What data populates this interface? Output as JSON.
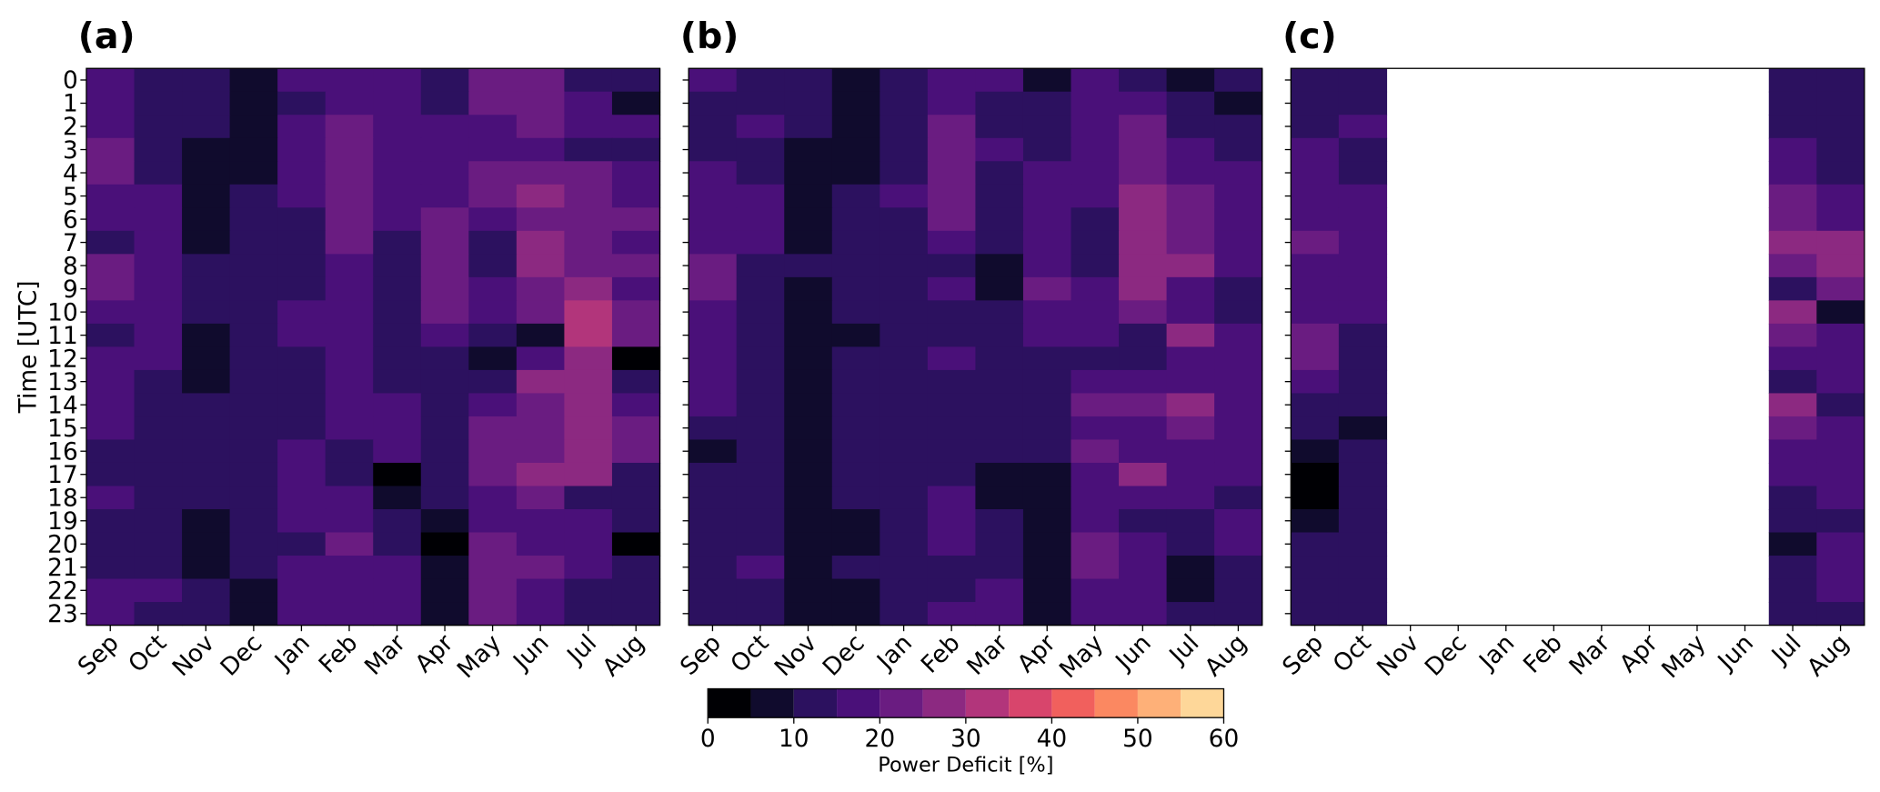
{
  "chart_data": [
    {
      "type": "heatmap",
      "title": "(a)",
      "ylabel": "Time [UTC]",
      "categories": [
        "Sep",
        "Oct",
        "Nov",
        "Dec",
        "Jan",
        "Feb",
        "Mar",
        "Apr",
        "May",
        "Jun",
        "Jul",
        "Aug"
      ],
      "rows": [
        0,
        1,
        2,
        3,
        4,
        5,
        6,
        7,
        8,
        9,
        10,
        11,
        12,
        13,
        14,
        15,
        16,
        17,
        18,
        19,
        20,
        21,
        22,
        23
      ],
      "values": [
        [
          17,
          12,
          12,
          7,
          17,
          17,
          17,
          12,
          22,
          22,
          12,
          12
        ],
        [
          17,
          12,
          12,
          7,
          12,
          17,
          17,
          12,
          22,
          22,
          17,
          7
        ],
        [
          17,
          12,
          12,
          7,
          17,
          22,
          17,
          17,
          17,
          22,
          17,
          17
        ],
        [
          22,
          12,
          7,
          7,
          17,
          22,
          17,
          17,
          17,
          17,
          12,
          12
        ],
        [
          22,
          12,
          7,
          7,
          17,
          22,
          17,
          17,
          22,
          22,
          22,
          17
        ],
        [
          17,
          17,
          7,
          12,
          17,
          22,
          17,
          17,
          22,
          27,
          22,
          17
        ],
        [
          17,
          17,
          7,
          12,
          12,
          22,
          17,
          22,
          17,
          22,
          22,
          22
        ],
        [
          12,
          17,
          7,
          12,
          12,
          22,
          12,
          22,
          12,
          27,
          22,
          17
        ],
        [
          22,
          17,
          12,
          12,
          12,
          17,
          12,
          22,
          12,
          27,
          22,
          22
        ],
        [
          22,
          17,
          12,
          12,
          12,
          17,
          12,
          22,
          17,
          22,
          27,
          17
        ],
        [
          17,
          17,
          12,
          12,
          17,
          17,
          12,
          22,
          17,
          22,
          32,
          22
        ],
        [
          12,
          17,
          7,
          12,
          17,
          17,
          12,
          17,
          12,
          7,
          32,
          22
        ],
        [
          17,
          17,
          7,
          12,
          12,
          17,
          12,
          12,
          7,
          17,
          27,
          2
        ],
        [
          17,
          12,
          7,
          12,
          12,
          17,
          12,
          12,
          12,
          27,
          27,
          12
        ],
        [
          17,
          12,
          12,
          12,
          12,
          17,
          17,
          12,
          17,
          22,
          27,
          17
        ],
        [
          17,
          12,
          12,
          12,
          12,
          17,
          17,
          12,
          22,
          22,
          27,
          22
        ],
        [
          12,
          12,
          12,
          12,
          17,
          12,
          17,
          12,
          22,
          22,
          27,
          22
        ],
        [
          12,
          12,
          12,
          12,
          17,
          12,
          2,
          12,
          22,
          27,
          27,
          12
        ],
        [
          17,
          12,
          12,
          12,
          17,
          17,
          7,
          12,
          17,
          22,
          12,
          12
        ],
        [
          12,
          12,
          7,
          12,
          17,
          17,
          12,
          7,
          17,
          17,
          17,
          12
        ],
        [
          12,
          12,
          7,
          12,
          12,
          22,
          12,
          2,
          22,
          17,
          17,
          2
        ],
        [
          12,
          12,
          7,
          12,
          17,
          17,
          17,
          7,
          22,
          22,
          17,
          12
        ],
        [
          17,
          17,
          12,
          7,
          17,
          17,
          17,
          7,
          22,
          17,
          12,
          12
        ],
        [
          17,
          12,
          12,
          7,
          17,
          17,
          17,
          7,
          22,
          17,
          12,
          12
        ]
      ]
    },
    {
      "type": "heatmap",
      "title": "(b)",
      "categories": [
        "Sep",
        "Oct",
        "Nov",
        "Dec",
        "Jan",
        "Feb",
        "Mar",
        "Apr",
        "May",
        "Jun",
        "Jul",
        "Aug"
      ],
      "values": [
        [
          17,
          12,
          12,
          7,
          12,
          17,
          17,
          7,
          17,
          12,
          7,
          12
        ],
        [
          12,
          12,
          12,
          7,
          12,
          17,
          12,
          12,
          17,
          17,
          12,
          7
        ],
        [
          12,
          17,
          12,
          7,
          12,
          22,
          12,
          12,
          17,
          22,
          12,
          12
        ],
        [
          12,
          12,
          7,
          7,
          12,
          22,
          17,
          12,
          17,
          22,
          17,
          12
        ],
        [
          17,
          12,
          7,
          7,
          12,
          22,
          12,
          17,
          17,
          22,
          17,
          17
        ],
        [
          17,
          17,
          7,
          12,
          17,
          22,
          12,
          17,
          17,
          27,
          22,
          17
        ],
        [
          17,
          17,
          7,
          12,
          12,
          22,
          12,
          17,
          12,
          27,
          22,
          17
        ],
        [
          17,
          17,
          7,
          12,
          12,
          17,
          12,
          17,
          12,
          27,
          22,
          17
        ],
        [
          22,
          12,
          12,
          12,
          12,
          12,
          7,
          17,
          12,
          27,
          27,
          17
        ],
        [
          22,
          12,
          7,
          12,
          12,
          17,
          7,
          22,
          17,
          27,
          17,
          12
        ],
        [
          17,
          12,
          7,
          12,
          12,
          12,
          12,
          17,
          17,
          22,
          17,
          12
        ],
        [
          17,
          12,
          7,
          7,
          12,
          12,
          12,
          17,
          17,
          12,
          27,
          17
        ],
        [
          17,
          12,
          7,
          12,
          12,
          17,
          12,
          12,
          12,
          12,
          17,
          17
        ],
        [
          17,
          12,
          7,
          12,
          12,
          12,
          12,
          12,
          17,
          17,
          17,
          17
        ],
        [
          17,
          12,
          7,
          12,
          12,
          12,
          12,
          12,
          22,
          22,
          27,
          17
        ],
        [
          12,
          12,
          7,
          12,
          12,
          12,
          12,
          12,
          17,
          17,
          22,
          17
        ],
        [
          7,
          12,
          7,
          12,
          12,
          12,
          12,
          12,
          22,
          17,
          17,
          17
        ],
        [
          12,
          12,
          7,
          12,
          12,
          12,
          7,
          7,
          17,
          27,
          17,
          17
        ],
        [
          12,
          12,
          7,
          12,
          12,
          17,
          7,
          7,
          17,
          17,
          17,
          12
        ],
        [
          12,
          12,
          7,
          7,
          12,
          17,
          12,
          7,
          17,
          12,
          12,
          17
        ],
        [
          12,
          12,
          7,
          7,
          12,
          17,
          12,
          7,
          22,
          17,
          12,
          17
        ],
        [
          12,
          17,
          7,
          12,
          12,
          12,
          12,
          7,
          22,
          17,
          7,
          12
        ],
        [
          12,
          12,
          7,
          7,
          12,
          12,
          17,
          7,
          17,
          17,
          7,
          12
        ],
        [
          12,
          12,
          7,
          7,
          12,
          17,
          17,
          7,
          17,
          17,
          12,
          12
        ]
      ]
    },
    {
      "type": "heatmap",
      "title": "(c)",
      "categories": [
        "Sep",
        "Oct",
        "Nov",
        "Dec",
        "Jan",
        "Feb",
        "Mar",
        "Apr",
        "May",
        "Jun",
        "Jul",
        "Aug"
      ],
      "values": [
        [
          12,
          12,
          null,
          null,
          null,
          null,
          null,
          null,
          null,
          null,
          12,
          12
        ],
        [
          12,
          12,
          null,
          null,
          null,
          null,
          null,
          null,
          null,
          null,
          12,
          12
        ],
        [
          12,
          17,
          null,
          null,
          null,
          null,
          null,
          null,
          null,
          null,
          12,
          12
        ],
        [
          17,
          12,
          null,
          null,
          null,
          null,
          null,
          null,
          null,
          null,
          17,
          12
        ],
        [
          17,
          12,
          null,
          null,
          null,
          null,
          null,
          null,
          null,
          null,
          17,
          12
        ],
        [
          17,
          17,
          null,
          null,
          null,
          null,
          null,
          null,
          null,
          null,
          22,
          17
        ],
        [
          17,
          17,
          null,
          null,
          null,
          null,
          null,
          null,
          null,
          null,
          22,
          17
        ],
        [
          22,
          17,
          null,
          null,
          null,
          null,
          null,
          null,
          null,
          null,
          27,
          27
        ],
        [
          17,
          17,
          null,
          null,
          null,
          null,
          null,
          null,
          null,
          null,
          22,
          27
        ],
        [
          17,
          17,
          null,
          null,
          null,
          null,
          null,
          null,
          null,
          null,
          12,
          22
        ],
        [
          17,
          17,
          null,
          null,
          null,
          null,
          null,
          null,
          null,
          null,
          27,
          7
        ],
        [
          22,
          12,
          null,
          null,
          null,
          null,
          null,
          null,
          null,
          null,
          22,
          17
        ],
        [
          22,
          12,
          null,
          null,
          null,
          null,
          null,
          null,
          null,
          null,
          17,
          17
        ],
        [
          17,
          12,
          null,
          null,
          null,
          null,
          null,
          null,
          null,
          null,
          12,
          17
        ],
        [
          12,
          12,
          null,
          null,
          null,
          null,
          null,
          null,
          null,
          null,
          27,
          12
        ],
        [
          12,
          7,
          null,
          null,
          null,
          null,
          null,
          null,
          null,
          null,
          22,
          17
        ],
        [
          7,
          12,
          null,
          null,
          null,
          null,
          null,
          null,
          null,
          null,
          17,
          17
        ],
        [
          2,
          12,
          null,
          null,
          null,
          null,
          null,
          null,
          null,
          null,
          17,
          17
        ],
        [
          2,
          12,
          null,
          null,
          null,
          null,
          null,
          null,
          null,
          null,
          12,
          17
        ],
        [
          7,
          12,
          null,
          null,
          null,
          null,
          null,
          null,
          null,
          null,
          12,
          12
        ],
        [
          12,
          12,
          null,
          null,
          null,
          null,
          null,
          null,
          null,
          null,
          7,
          17
        ],
        [
          12,
          12,
          null,
          null,
          null,
          null,
          null,
          null,
          null,
          null,
          12,
          17
        ],
        [
          12,
          12,
          null,
          null,
          null,
          null,
          null,
          null,
          null,
          null,
          12,
          17
        ],
        [
          12,
          12,
          null,
          null,
          null,
          null,
          null,
          null,
          null,
          null,
          12,
          12
        ]
      ]
    }
  ],
  "colorbar": {
    "label": "Power Deficit [%]",
    "levels": [
      0,
      5,
      10,
      15,
      20,
      25,
      30,
      35,
      40,
      45,
      50,
      55,
      60
    ],
    "colors": [
      "#000004",
      "#100b2d",
      "#2c115f",
      "#4a1079",
      "#6a1c81",
      "#8c2981",
      "#b2357b",
      "#d8456c",
      "#f1605d",
      "#fb8861",
      "#feb078",
      "#fed799",
      "#fcfdbf"
    ],
    "ticks": [
      0,
      10,
      20,
      30,
      40,
      50,
      60
    ]
  }
}
